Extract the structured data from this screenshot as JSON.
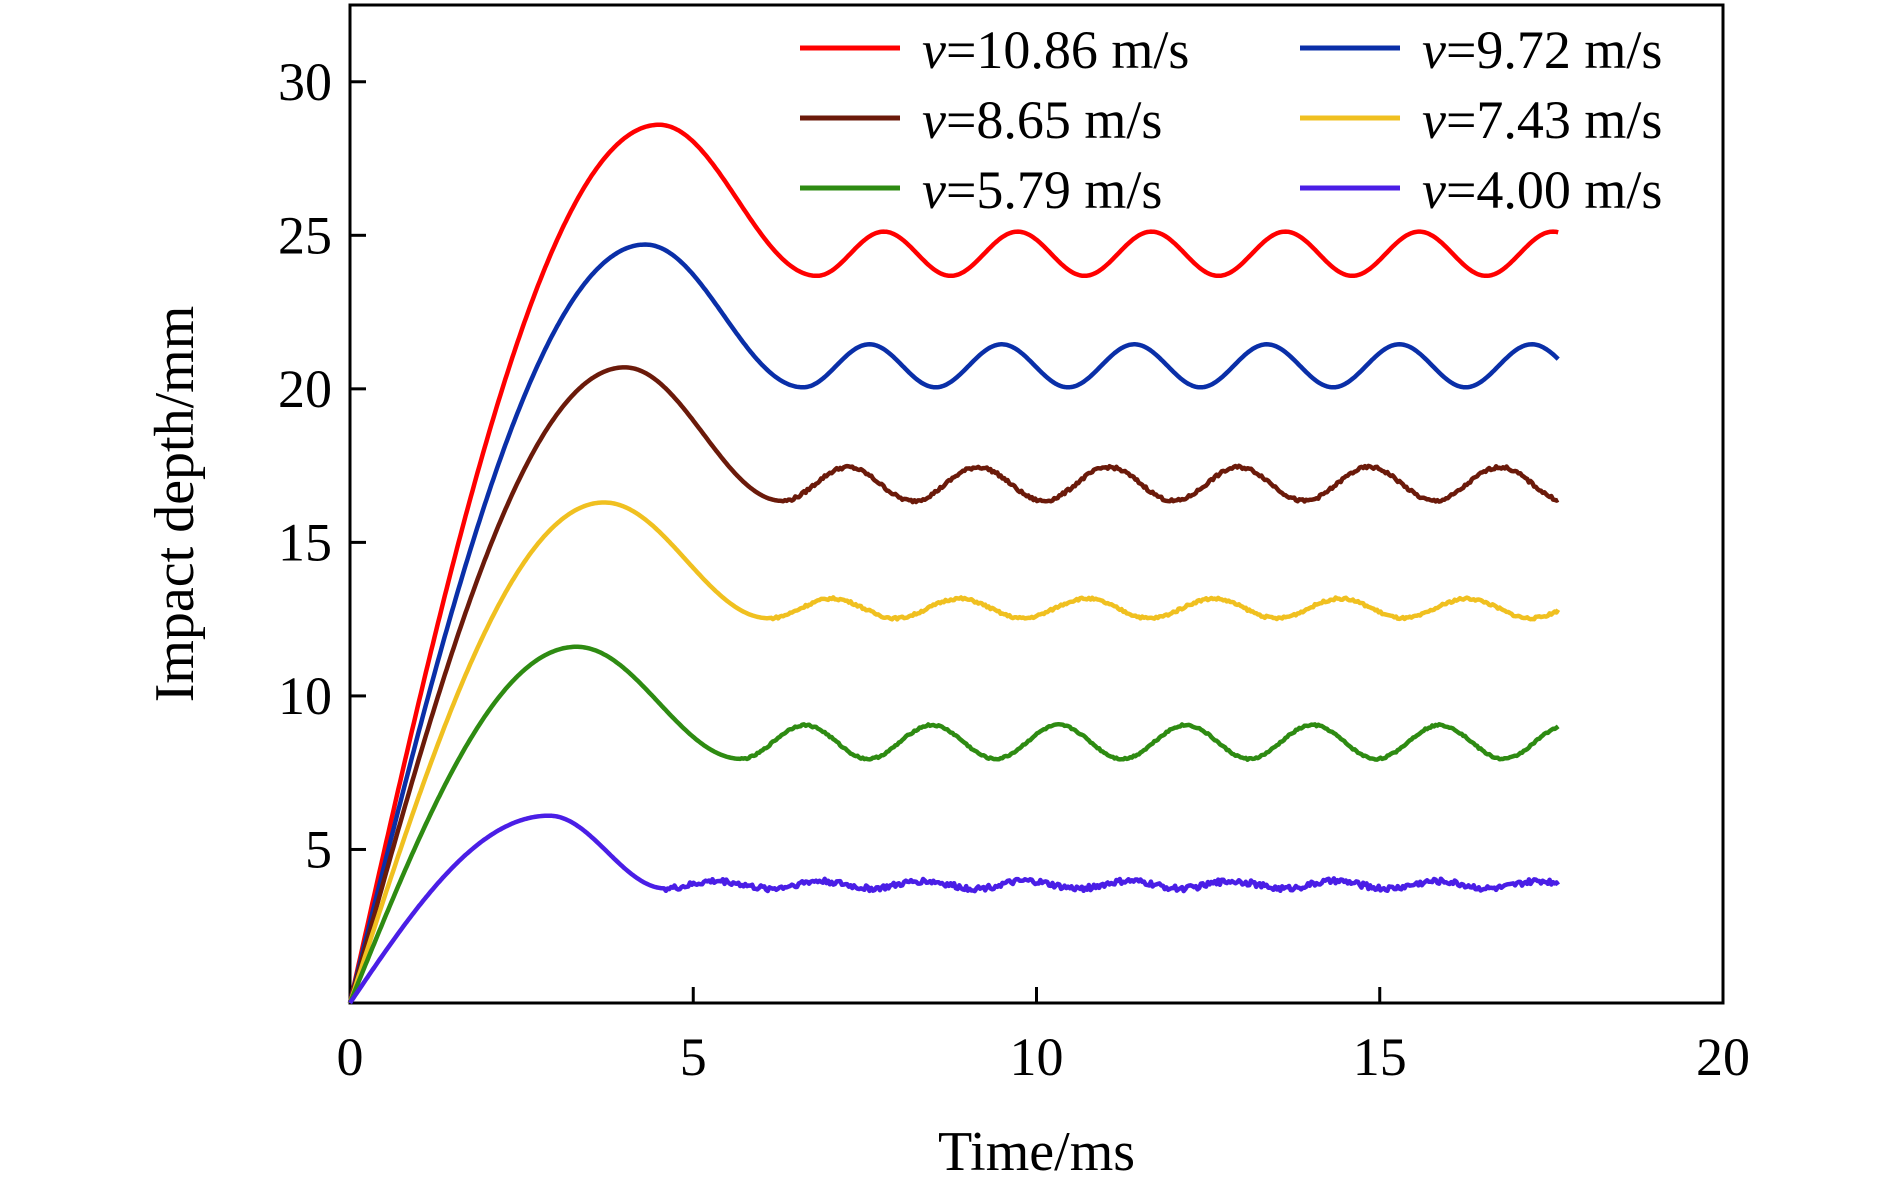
{
  "chart_data": {
    "type": "line",
    "xlabel": "Time/ms",
    "ylabel": "Impact depth/mm",
    "xlim": [
      0,
      20
    ],
    "ylim": [
      0,
      32.5
    ],
    "xticks": [
      0,
      5,
      10,
      15,
      20
    ],
    "yticks": [
      5,
      10,
      15,
      20,
      25,
      30
    ],
    "grid": false,
    "legend_position": "top-right",
    "series": [
      {
        "name": "10.86 m/s",
        "var": "v",
        "color": "#ff0000",
        "peak_t": 4.5,
        "peak_y": 28.6,
        "settle_t": 6.8,
        "osc_center": 24.4,
        "osc_amp": 0.72,
        "period": 1.95,
        "noise": 0.0
      },
      {
        "name": "9.72 m/s",
        "var": "v",
        "color": "#0a2fa8",
        "peak_t": 4.3,
        "peak_y": 24.7,
        "settle_t": 6.6,
        "osc_center": 20.75,
        "osc_amp": 0.7,
        "period": 1.93,
        "noise": 0.0
      },
      {
        "name": "8.65 m/s",
        "var": "v",
        "color": "#6b1a0a",
        "peak_t": 4.0,
        "peak_y": 20.7,
        "settle_t": 6.3,
        "osc_center": 16.9,
        "osc_amp": 0.55,
        "period": 1.9,
        "noise": 0.05
      },
      {
        "name": "7.43 m/s",
        "var": "v",
        "color": "#f0c020",
        "peak_t": 3.7,
        "peak_y": 16.3,
        "settle_t": 6.1,
        "osc_center": 12.85,
        "osc_amp": 0.32,
        "period": 1.85,
        "noise": 0.04
      },
      {
        "name": "5.79 m/s",
        "var": "v",
        "color": "#2e8b12",
        "peak_t": 3.3,
        "peak_y": 11.6,
        "settle_t": 5.7,
        "osc_center": 8.5,
        "osc_amp": 0.55,
        "period": 1.85,
        "noise": 0.03
      },
      {
        "name": "4.00 m/s",
        "var": "v",
        "color": "#4a1ee6",
        "peak_t": 2.9,
        "peak_y": 6.1,
        "settle_t": 4.6,
        "osc_center": 3.85,
        "osc_amp": 0.12,
        "period": 1.5,
        "noise": 0.09
      }
    ],
    "t_end": 17.6
  }
}
